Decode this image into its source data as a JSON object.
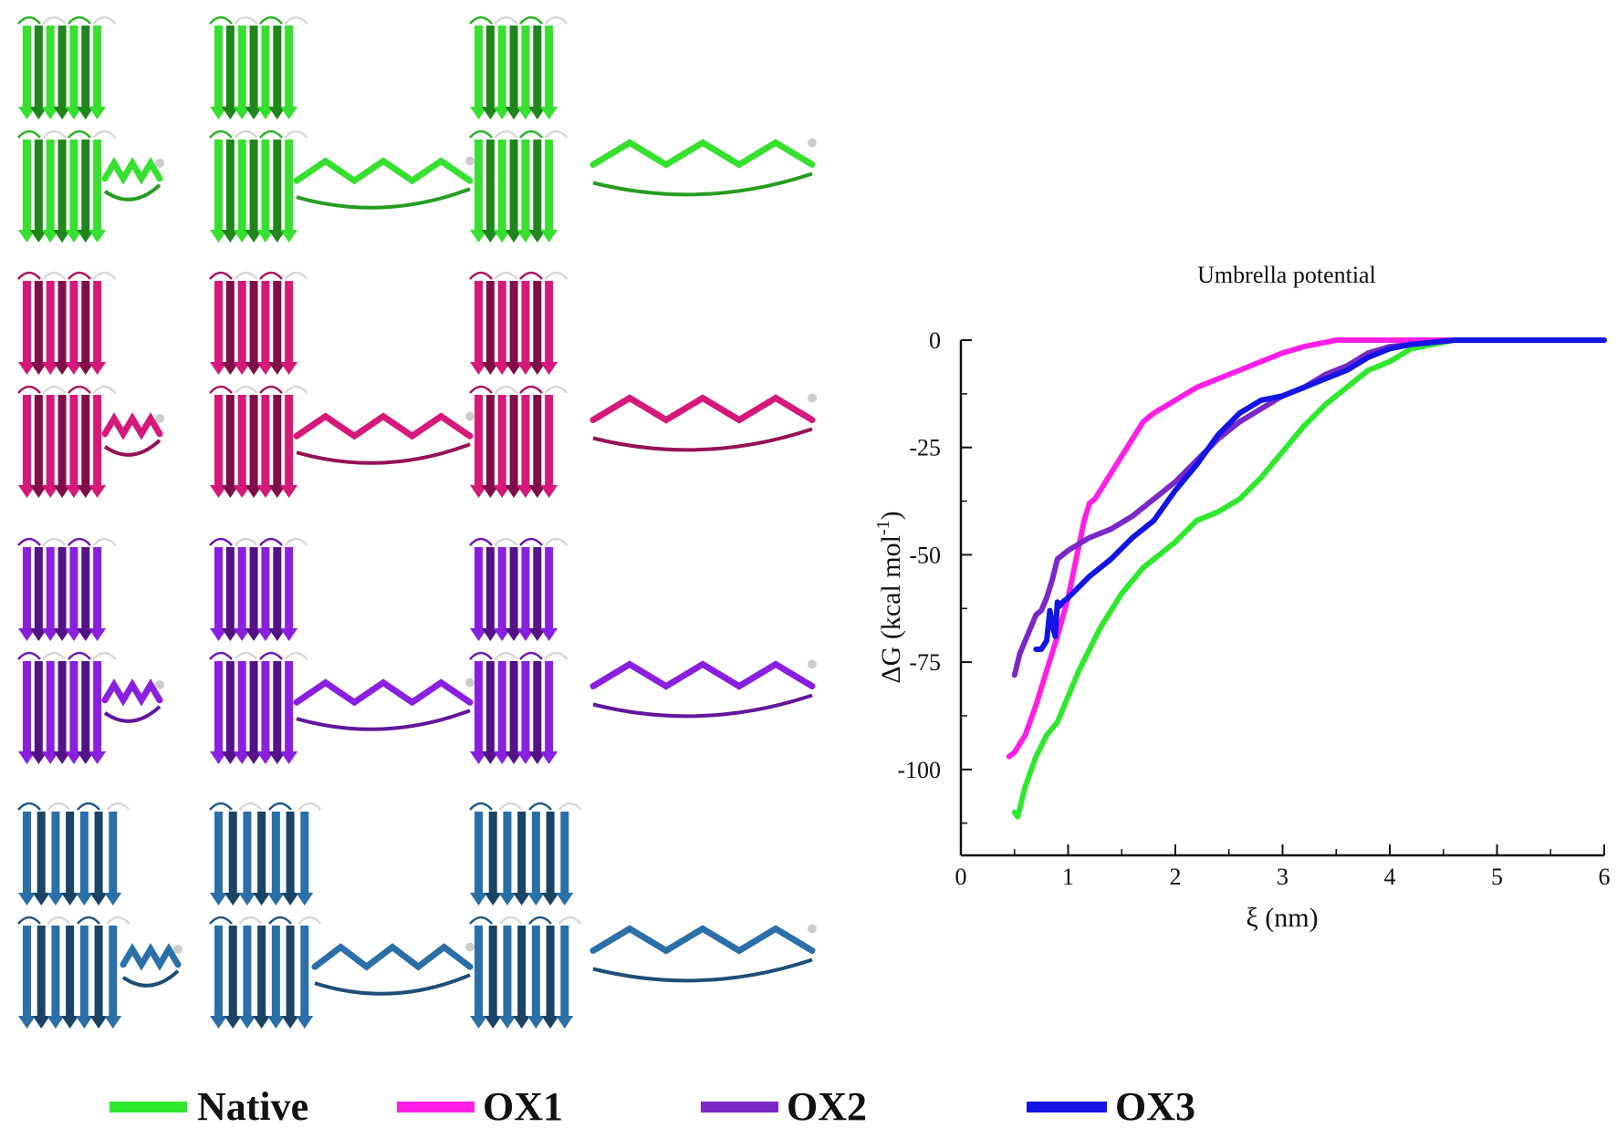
{
  "colors": {
    "green": "#2ee82e",
    "magenta": "#ff1ee6",
    "purple": "#7a28c8",
    "blue": "#1414e6",
    "pink_structure": "#d6187a",
    "violet_structure": "#8a1fe0",
    "steel_structure": "#2b6fa8",
    "green_structure": "#36e02e"
  },
  "structures": {
    "rows": [
      {
        "color_key": "green_structure"
      },
      {
        "color_key": "pink_structure"
      },
      {
        "color_key": "violet_structure"
      },
      {
        "color_key": "steel_structure"
      }
    ]
  },
  "legend": {
    "entries": [
      {
        "label": "Native",
        "color": "#2ee82e"
      },
      {
        "label": "OX1",
        "color": "#ff1ee6"
      },
      {
        "label": "OX2",
        "color": "#7a28c8"
      },
      {
        "label": "OX3",
        "color": "#1414e6"
      }
    ]
  },
  "chart_data": {
    "type": "line",
    "title": "Umbrella potential",
    "xlabel": "ξ (nm)",
    "ylabel": "ΔG (kcal mol",
    "ylabel_sup": "-1",
    "ylabel_close": ")",
    "xlim": [
      0,
      6
    ],
    "ylim": [
      -120,
      0
    ],
    "xticks": [
      0,
      1,
      2,
      3,
      4,
      5,
      6
    ],
    "yticks": [
      0,
      -25,
      -50,
      -75,
      -100
    ],
    "grid": false,
    "series": [
      {
        "name": "Native",
        "color": "#2ee82e",
        "x": [
          0.5,
          0.53,
          0.6,
          0.7,
          0.8,
          0.9,
          1.0,
          1.1,
          1.2,
          1.3,
          1.4,
          1.5,
          1.6,
          1.7,
          1.8,
          1.9,
          2.0,
          2.2,
          2.4,
          2.6,
          2.8,
          3.0,
          3.2,
          3.4,
          3.6,
          3.8,
          4.0,
          4.2,
          4.4,
          4.6,
          5.0,
          5.5,
          6.0
        ],
        "y": [
          -110,
          -111,
          -104,
          -97,
          -92,
          -89,
          -83,
          -77,
          -72,
          -67,
          -63,
          -59,
          -56,
          -53,
          -51,
          -49,
          -47,
          -42,
          -40,
          -37,
          -32,
          -26,
          -20,
          -15,
          -11,
          -7,
          -5,
          -2,
          -1,
          0,
          0,
          0,
          0
        ]
      },
      {
        "name": "OX1",
        "color": "#ff1ee6",
        "x": [
          0.45,
          0.5,
          0.6,
          0.7,
          0.8,
          0.9,
          1.0,
          1.1,
          1.15,
          1.2,
          1.25,
          1.3,
          1.4,
          1.5,
          1.6,
          1.7,
          1.8,
          2.0,
          2.2,
          2.4,
          2.6,
          2.8,
          3.0,
          3.2,
          3.4,
          3.5,
          3.7,
          3.9,
          4.1,
          4.3,
          4.6,
          5.0,
          6.0
        ],
        "y": [
          -97,
          -96,
          -92,
          -85,
          -77,
          -69,
          -60,
          -48,
          -42,
          -38,
          -37,
          -35,
          -31,
          -27,
          -23,
          -19,
          -17,
          -14,
          -11,
          -9,
          -7,
          -5,
          -3,
          -1.5,
          -0.5,
          0,
          0,
          0,
          0,
          0,
          0,
          0,
          0
        ]
      },
      {
        "name": "OX2",
        "color": "#7a28c8",
        "x": [
          0.5,
          0.55,
          0.6,
          0.65,
          0.7,
          0.75,
          0.8,
          0.85,
          0.9,
          1.0,
          1.2,
          1.4,
          1.6,
          1.8,
          2.0,
          2.2,
          2.4,
          2.6,
          2.8,
          3.0,
          3.2,
          3.4,
          3.6,
          3.8,
          4.0,
          4.2,
          4.4,
          4.6,
          5.0,
          5.5,
          6.0
        ],
        "y": [
          -78,
          -73,
          -70,
          -67,
          -64,
          -63,
          -60,
          -56,
          -51,
          -49,
          -46,
          -44,
          -41,
          -37,
          -33,
          -28,
          -23,
          -19,
          -16,
          -13,
          -11,
          -8,
          -6,
          -3,
          -1.5,
          -1,
          -0.5,
          0,
          0,
          0,
          0
        ]
      },
      {
        "name": "OX3",
        "color": "#1414e6",
        "x": [
          0.7,
          0.75,
          0.8,
          0.83,
          0.86,
          0.88,
          0.9,
          0.92,
          0.95,
          1.0,
          1.2,
          1.4,
          1.6,
          1.8,
          2.0,
          2.2,
          2.4,
          2.6,
          2.8,
          3.0,
          3.2,
          3.4,
          3.6,
          3.8,
          4.0,
          4.2,
          4.4,
          4.6,
          5.0,
          5.5,
          6.0
        ],
        "y": [
          -72,
          -72,
          -70,
          -63,
          -67,
          -69,
          -61,
          -62,
          -61,
          -60,
          -55,
          -51,
          -46,
          -42,
          -35,
          -29,
          -22,
          -17,
          -14,
          -13,
          -11,
          -9,
          -7,
          -4,
          -2,
          -1,
          -0.5,
          0,
          0,
          0,
          0
        ]
      }
    ]
  }
}
